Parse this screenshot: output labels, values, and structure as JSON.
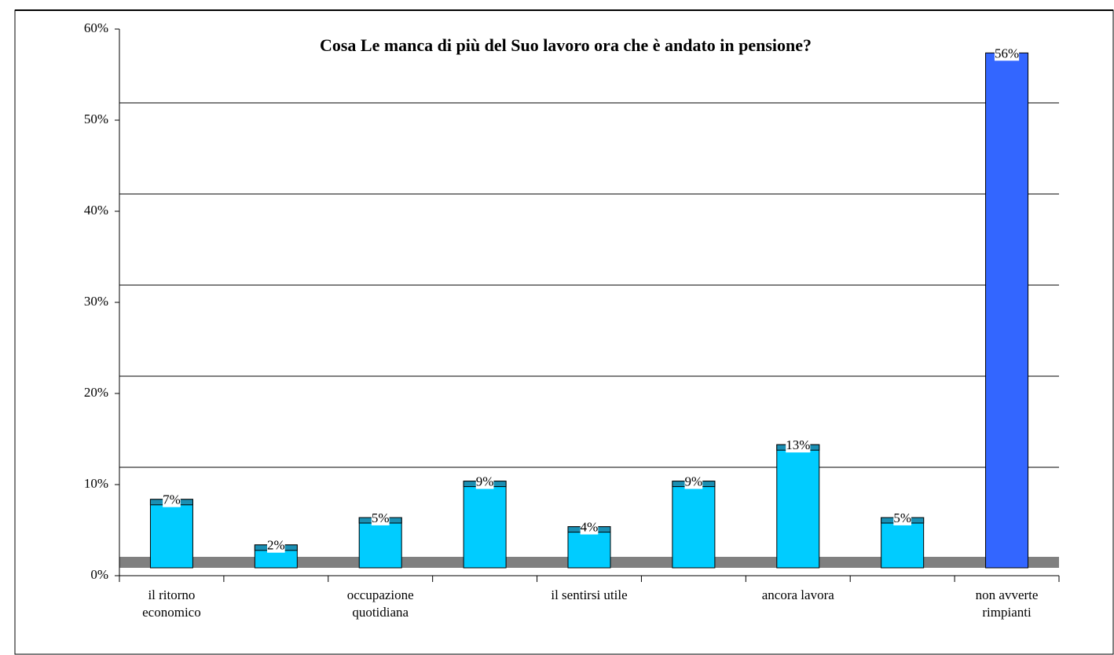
{
  "chart_data": {
    "type": "bar",
    "title": "Cosa Le manca di più del Suo lavoro ora che è andato in pensione?",
    "categories": [
      "il ritorno\neconomico",
      null,
      "occupazione\nquotidiana",
      null,
      "il sentirsi utile",
      null,
      "ancora lavora",
      null,
      "non avverte\nrimpianti"
    ],
    "values": [
      7,
      2,
      5,
      9,
      4,
      9,
      13,
      5,
      56
    ],
    "value_labels": [
      "7%",
      "2%",
      "5%",
      "9%",
      "4%",
      "9%",
      "13%",
      "5%",
      "56%"
    ],
    "colors": [
      "#00ccff",
      "#00ccff",
      "#00ccff",
      "#00ccff",
      "#00ccff",
      "#00ccff",
      "#00ccff",
      "#00ccff",
      "#3366ff"
    ],
    "ylim": [
      0,
      60
    ],
    "yticks": [
      {
        "value": 0,
        "label": "0%"
      },
      {
        "value": 10,
        "label": "10%"
      },
      {
        "value": 20,
        "label": "20%"
      },
      {
        "value": 30,
        "label": "30%"
      },
      {
        "value": 40,
        "label": "40%"
      },
      {
        "value": 50,
        "label": "50%"
      },
      {
        "value": 60,
        "label": "60%"
      }
    ],
    "grid": true
  }
}
